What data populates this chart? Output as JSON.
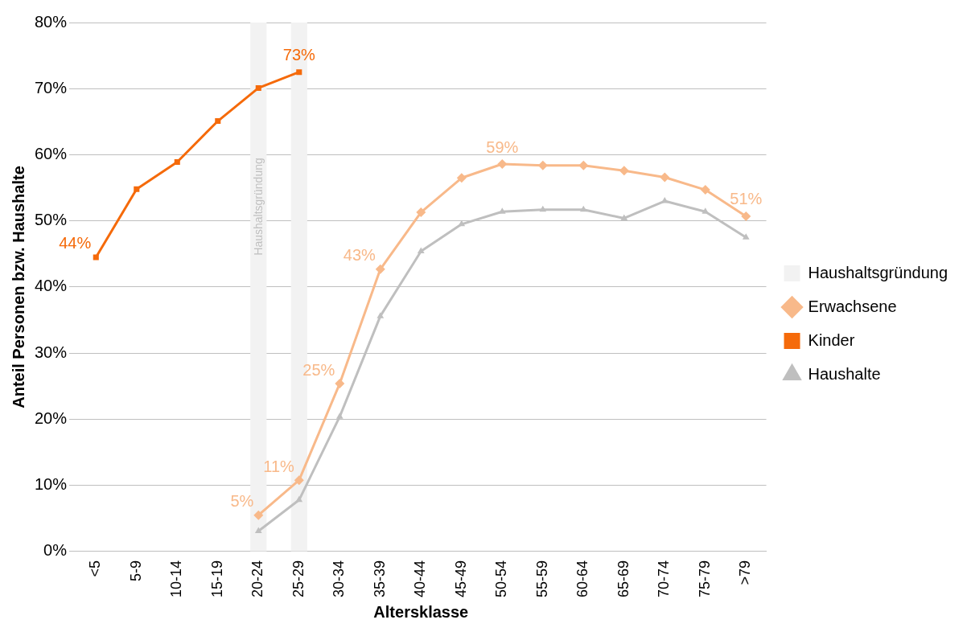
{
  "chart_data": {
    "type": "line",
    "xlabel": "Altersklasse",
    "ylabel": "Anteil Personen bzw. Haushalte",
    "categories": [
      "<5",
      "5-9",
      "10-14",
      "15-19",
      "20-24",
      "25-29",
      "30-34",
      "35-39",
      "40-44",
      "45-49",
      "50-54",
      "55-59",
      "60-64",
      "65-69",
      "70-74",
      "75-79",
      ">79"
    ],
    "series": [
      {
        "name": "Haushaltsgründung",
        "type": "bar",
        "color": "#f2f2f2",
        "values": [
          null,
          null,
          null,
          null,
          80,
          80,
          null,
          null,
          null,
          null,
          null,
          null,
          null,
          null,
          null,
          null,
          null
        ]
      },
      {
        "name": "Erwachsene",
        "color": "#f8b98a",
        "marker": "diamond",
        "values": [
          null,
          null,
          null,
          null,
          5.5,
          10.8,
          25.4,
          42.7,
          51.3,
          56.5,
          58.6,
          58.4,
          58.4,
          57.6,
          56.6,
          54.7,
          50.7
        ],
        "value_labels": [
          null,
          null,
          null,
          null,
          "5%",
          "11%",
          "25%",
          "43%",
          null,
          null,
          "59%",
          null,
          null,
          null,
          null,
          null,
          "51%"
        ]
      },
      {
        "name": "Kinder",
        "color": "#f56a0a",
        "marker": "square",
        "values": [
          44.5,
          54.8,
          58.9,
          65.1,
          70.1,
          72.5,
          null,
          null,
          null,
          null,
          null,
          null,
          null,
          null,
          null,
          null,
          null
        ],
        "value_labels": [
          "44%",
          null,
          null,
          null,
          null,
          "73%",
          null,
          null,
          null,
          null,
          null,
          null,
          null,
          null,
          null,
          null,
          null
        ]
      },
      {
        "name": "Haushalte",
        "color": "#bfbfbf",
        "marker": "triangle",
        "values": [
          null,
          null,
          null,
          null,
          3.1,
          7.8,
          20.4,
          35.6,
          45.4,
          49.5,
          51.4,
          51.7,
          51.7,
          50.4,
          53.0,
          51.4,
          47.5
        ]
      }
    ],
    "annotations": [
      "Haushaltsgründung"
    ],
    "ylim": [
      0,
      80
    ],
    "yticks": [
      {
        "value": 0,
        "label": "0%"
      },
      {
        "value": 10,
        "label": "10%"
      },
      {
        "value": 20,
        "label": "20%"
      },
      {
        "value": 30,
        "label": "30%"
      },
      {
        "value": 40,
        "label": "40%"
      },
      {
        "value": 50,
        "label": "50%"
      },
      {
        "value": 60,
        "label": "60%"
      },
      {
        "value": 70,
        "label": "70%"
      },
      {
        "value": 80,
        "label": "80%"
      }
    ],
    "grid": "y",
    "legend": "right"
  }
}
